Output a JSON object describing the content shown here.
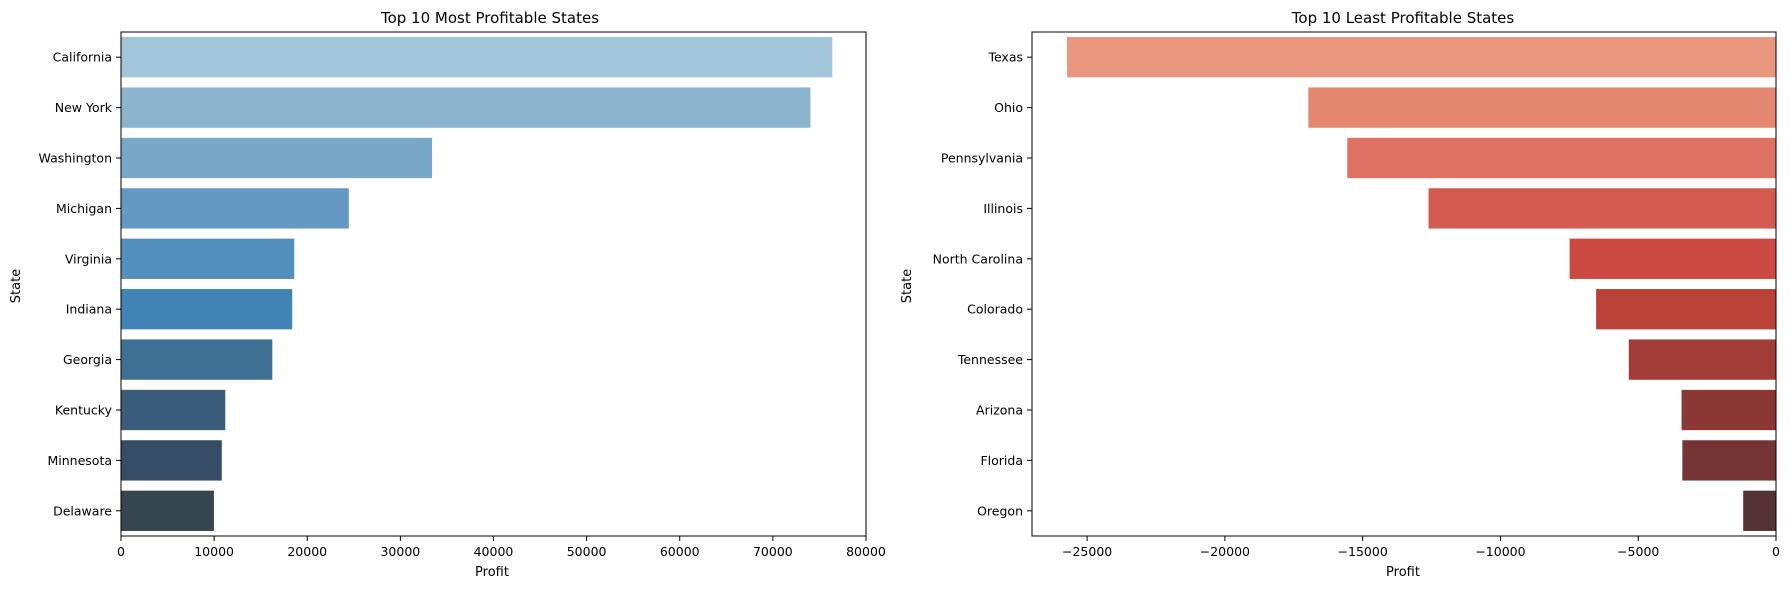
{
  "chart_data": [
    {
      "type": "bar",
      "orientation": "horizontal",
      "title": "Top 10 Most Profitable States",
      "xlabel": "Profit",
      "ylabel": "State",
      "xlim": [
        0,
        80000
      ],
      "xticks": [
        0,
        10000,
        20000,
        30000,
        40000,
        50000,
        60000,
        70000,
        80000
      ],
      "xtick_labels": [
        "0",
        "10000",
        "20000",
        "30000",
        "40000",
        "50000",
        "60000",
        "70000",
        "80000"
      ],
      "categories": [
        "California",
        "New York",
        "Washington",
        "Michigan",
        "Virginia",
        "Indiana",
        "Georgia",
        "Kentucky",
        "Minnesota",
        "Delaware"
      ],
      "values": [
        76381,
        74039,
        33403,
        24463,
        18598,
        18383,
        16250,
        11200,
        10823,
        9977
      ],
      "colors": [
        "#a2c5da",
        "#8cb4cf",
        "#79a7c8",
        "#6499c4",
        "#528fbc",
        "#4283b5",
        "#3f6f93",
        "#3c5c7b",
        "#374d65",
        "#35464e"
      ],
      "grid": false,
      "legend": "none"
    },
    {
      "type": "bar",
      "orientation": "horizontal",
      "title": "Top 10 Least Profitable States",
      "xlabel": "Profit",
      "ylabel": "State",
      "xlim": [
        -27000,
        0
      ],
      "xticks": [
        -25000,
        -20000,
        -15000,
        -10000,
        -5000,
        0
      ],
      "xtick_labels": [
        "−25000",
        "−20000",
        "−15000",
        "−10000",
        "−5000",
        "0"
      ],
      "categories": [
        "Texas",
        "Ohio",
        "Pennsylvania",
        "Illinois",
        "North Carolina",
        "Colorado",
        "Tennessee",
        "Arizona",
        "Florida",
        "Oregon"
      ],
      "values": [
        -25729,
        -16971,
        -15560,
        -12608,
        -7491,
        -6528,
        -5342,
        -3428,
        -3399,
        -1190
      ],
      "colors": [
        "#e9987f",
        "#e48770",
        "#df7263",
        "#d45b50",
        "#cc4942",
        "#ba4138",
        "#a13d36",
        "#8b3835",
        "#763535",
        "#543234"
      ],
      "grid": false,
      "legend": "none"
    }
  ]
}
